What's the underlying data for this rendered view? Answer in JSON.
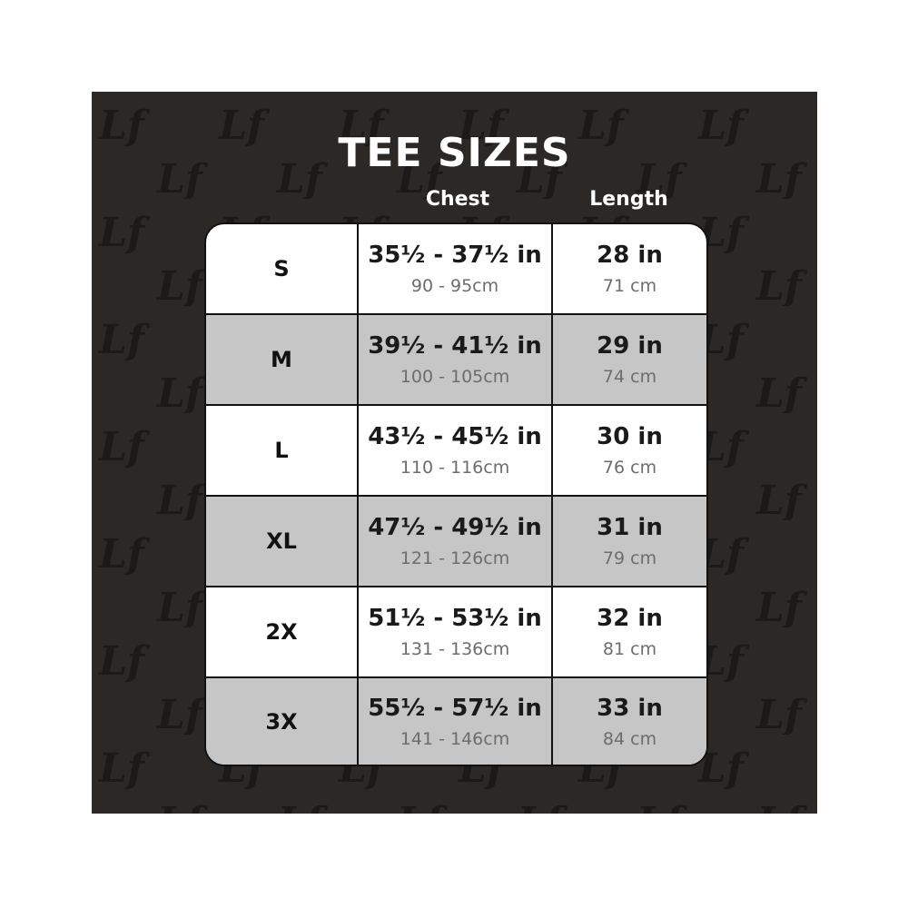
{
  "logo_pattern_text": "Lf",
  "title": "TEE SIZES",
  "headers": {
    "chest": "Chest",
    "length": "Length"
  },
  "colors": {
    "background": "#2b2826",
    "row_white": "#ffffff",
    "row_grey": "#c6c6c6",
    "title": "#ffffff"
  },
  "rows": [
    {
      "size": "S",
      "chest_in": "35½ - 37½ in",
      "chest_cm": "90 - 95cm",
      "length_in": "28 in",
      "length_cm": "71 cm"
    },
    {
      "size": "M",
      "chest_in": "39½ - 41½ in",
      "chest_cm": "100 - 105cm",
      "length_in": "29 in",
      "length_cm": "74 cm"
    },
    {
      "size": "L",
      "chest_in": "43½ - 45½  in",
      "chest_cm": "110 - 116cm",
      "length_in": "30 in",
      "length_cm": "76 cm"
    },
    {
      "size": "XL",
      "chest_in": "47½ - 49½ in",
      "chest_cm": "121 - 126cm",
      "length_in": "31 in",
      "length_cm": "79 cm"
    },
    {
      "size": "2X",
      "chest_in": "51½ - 53½ in",
      "chest_cm": "131 - 136cm",
      "length_in": "32 in",
      "length_cm": "81 cm"
    },
    {
      "size": "3X",
      "chest_in": "55½ - 57½ in",
      "chest_cm": "141 - 146cm",
      "length_in": "33 in",
      "length_cm": "84 cm"
    }
  ]
}
